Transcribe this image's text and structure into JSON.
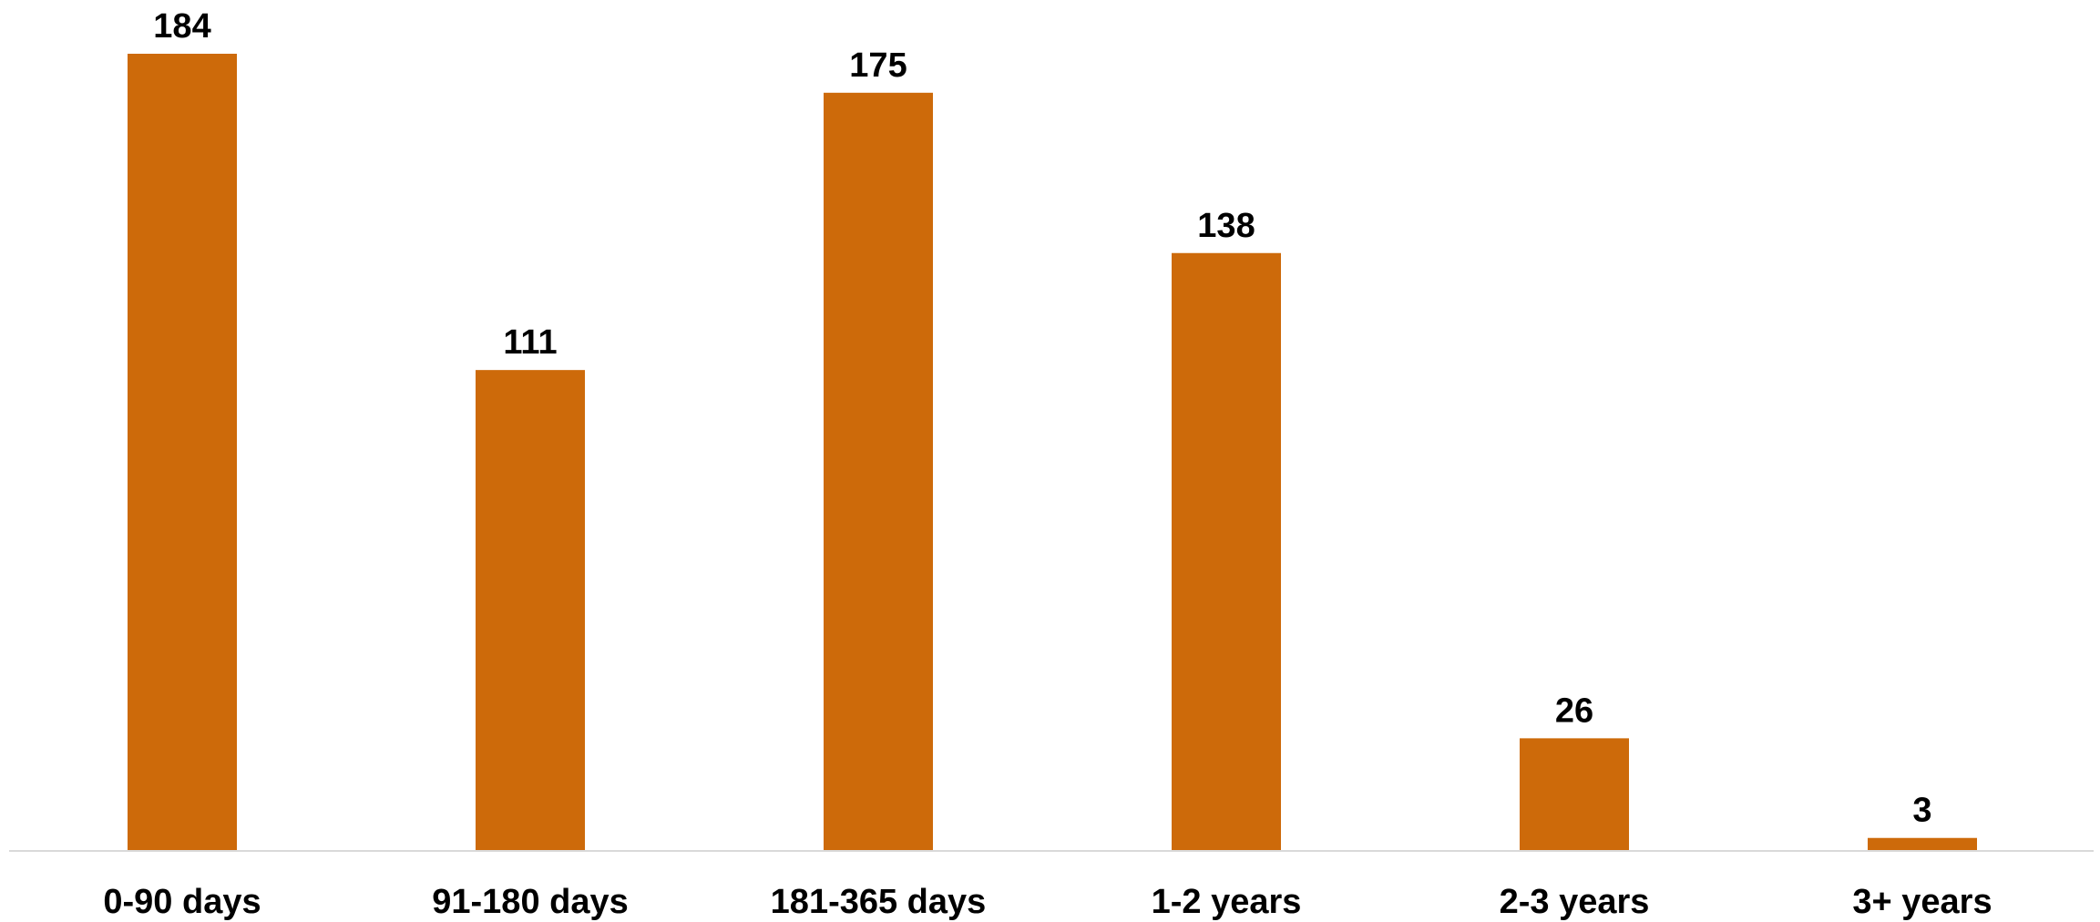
{
  "chart_data": {
    "type": "bar",
    "categories": [
      "0-90 days",
      "91-180 days",
      "181-365 days",
      "1-2 years",
      "2-3 years",
      "3+ years"
    ],
    "values": [
      184,
      111,
      175,
      138,
      26,
      3
    ],
    "title": "",
    "xlabel": "",
    "ylabel": "",
    "ylim": [
      0,
      184
    ],
    "grid": false,
    "legend": "none",
    "data_labels": true,
    "colors": {
      "bar": "#CD6A0A",
      "axis": "#D9D9D9",
      "text": "#000000"
    }
  }
}
